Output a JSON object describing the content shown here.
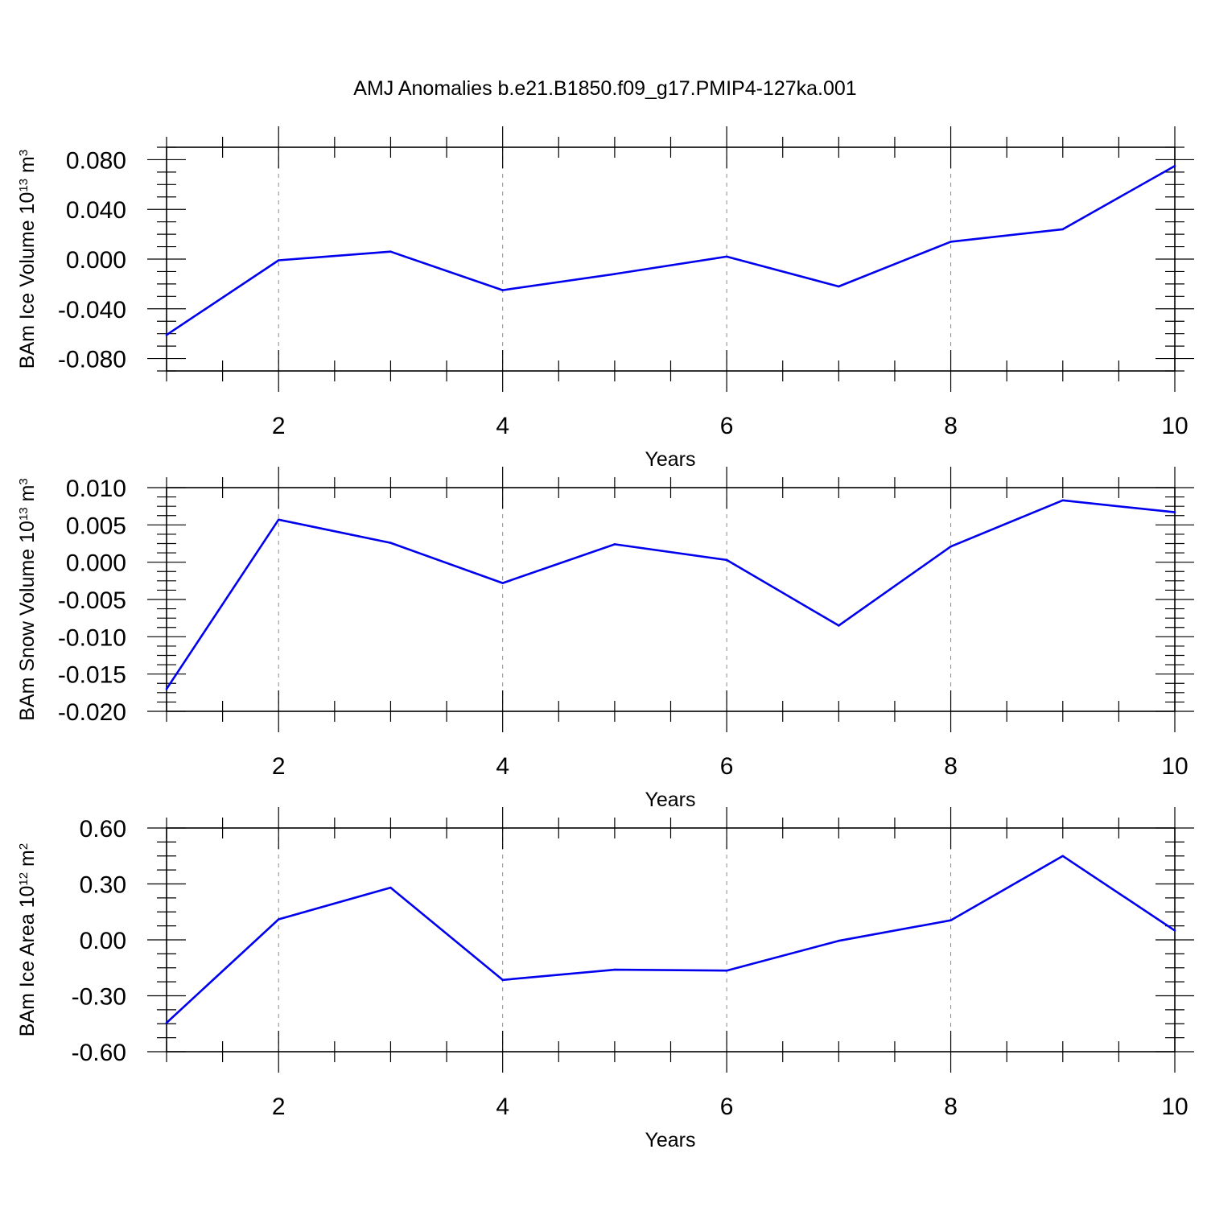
{
  "figure": {
    "title": "AMJ Anomalies b.e21.B1850.f09_g17.PMIP4-127ka.001"
  },
  "style": {
    "line_color": "#0000ee",
    "axis_color": "#000000",
    "grid_color": "#8c8c8c"
  },
  "chart_data": [
    {
      "type": "line",
      "xlabel": "Years",
      "ylabel": {
        "prefix": "BAm Ice Volume 10",
        "exp": "13",
        "unit": " m",
        "unit_exp": "3"
      },
      "x": [
        1,
        2,
        3,
        4,
        5,
        6,
        7,
        8,
        9,
        10
      ],
      "series": [
        {
          "values": [
            -0.061,
            -0.001,
            0.006,
            -0.025,
            -0.012,
            0.002,
            -0.022,
            0.014,
            0.024,
            0.075
          ]
        }
      ],
      "xlim": [
        1,
        10
      ],
      "ylim": [
        -0.09,
        0.09
      ],
      "xticks": [
        2,
        4,
        6,
        8,
        10
      ],
      "xtick_labels": [
        "2",
        "4",
        "6",
        "8",
        "10"
      ],
      "yticks": [
        -0.08,
        -0.04,
        0.0,
        0.04,
        0.08
      ],
      "ytick_labels": [
        "-0.080",
        "-0.040",
        "0.000",
        "0.040",
        "0.080"
      ],
      "grid": "vertical dashed at major x ticks"
    },
    {
      "type": "line",
      "xlabel": "Years",
      "ylabel": {
        "prefix": "BAm Snow Volume 10",
        "exp": "13",
        "unit": " m",
        "unit_exp": "3"
      },
      "x": [
        1,
        2,
        3,
        4,
        5,
        6,
        7,
        8,
        9,
        10
      ],
      "series": [
        {
          "values": [
            -0.017,
            0.0057,
            0.0026,
            -0.0028,
            0.0024,
            0.0003,
            -0.0085,
            0.0021,
            0.0083,
            0.0067
          ]
        }
      ],
      "xlim": [
        1,
        10
      ],
      "ylim": [
        -0.02,
        0.01
      ],
      "xticks": [
        2,
        4,
        6,
        8,
        10
      ],
      "xtick_labels": [
        "2",
        "4",
        "6",
        "8",
        "10"
      ],
      "yticks": [
        -0.02,
        -0.015,
        -0.01,
        -0.005,
        0.0,
        0.005,
        0.01
      ],
      "ytick_labels": [
        "-0.020",
        "-0.015",
        "-0.010",
        "-0.005",
        "0.000",
        "0.005",
        "0.010"
      ],
      "grid": "vertical dashed at major x ticks"
    },
    {
      "type": "line",
      "xlabel": "Years",
      "ylabel": {
        "prefix": "BAm Ice Area 10",
        "exp": "12",
        "unit": " m",
        "unit_exp": "2"
      },
      "x": [
        1,
        2,
        3,
        4,
        5,
        6,
        7,
        8,
        9,
        10
      ],
      "series": [
        {
          "values": [
            -0.445,
            0.11,
            0.28,
            -0.215,
            -0.16,
            -0.165,
            -0.005,
            0.105,
            0.45,
            0.05
          ]
        }
      ],
      "xlim": [
        1,
        10
      ],
      "ylim": [
        -0.6,
        0.6
      ],
      "xticks": [
        2,
        4,
        6,
        8,
        10
      ],
      "xtick_labels": [
        "2",
        "4",
        "6",
        "8",
        "10"
      ],
      "yticks": [
        -0.6,
        -0.3,
        0.0,
        0.3,
        0.6
      ],
      "ytick_labels": [
        "-0.60",
        "-0.30",
        "0.00",
        "0.30",
        "0.60"
      ],
      "grid": "vertical dashed at major x ticks"
    }
  ]
}
